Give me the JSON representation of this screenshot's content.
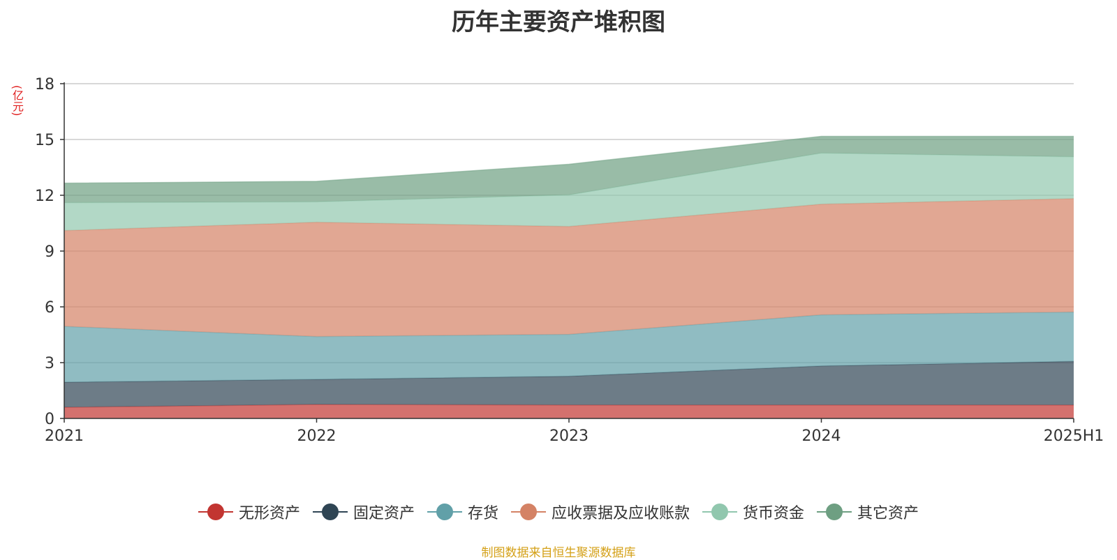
{
  "title": "历年主要资产堆积图",
  "unit_label": "(亿元)",
  "source": "制图数据来自恒生聚源数据库",
  "chart_data": {
    "type": "area",
    "stacked": true,
    "title": "历年主要资产堆积图",
    "ylabel": "(亿元)",
    "xlabel": "",
    "categories": [
      "2021",
      "2022",
      "2023",
      "2024",
      "2025H1"
    ],
    "ylim": [
      0,
      18
    ],
    "yticks": [
      0,
      3,
      6,
      9,
      12,
      15,
      18
    ],
    "grid": true,
    "legend_position": "bottom",
    "series": [
      {
        "name": "无形资产",
        "color": "#c23531",
        "values": [
          0.6,
          0.75,
          0.72,
          0.72,
          0.72
        ]
      },
      {
        "name": "固定资产",
        "color": "#2f4554",
        "values": [
          1.35,
          1.35,
          1.55,
          2.1,
          2.35
        ]
      },
      {
        "name": "存货",
        "color": "#61a0a8",
        "values": [
          3.0,
          2.3,
          2.25,
          2.75,
          2.65
        ]
      },
      {
        "name": "应收票据及应收账款",
        "color": "#d48265",
        "values": [
          5.15,
          6.15,
          5.8,
          5.95,
          6.1
        ]
      },
      {
        "name": "货币资金",
        "color": "#91c7ae",
        "values": [
          1.5,
          1.1,
          1.7,
          2.75,
          2.25
        ]
      },
      {
        "name": "其它资产",
        "color": "#6e9f82",
        "values": [
          1.05,
          1.1,
          1.65,
          0.9,
          1.1
        ]
      }
    ]
  }
}
